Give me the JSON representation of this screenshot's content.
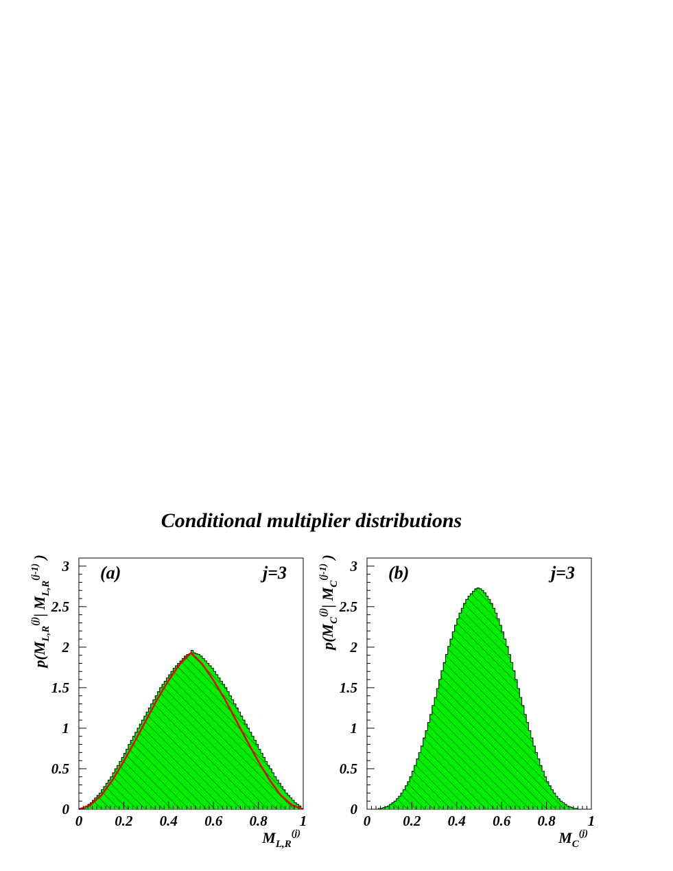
{
  "title": "Conditional multiplier distributions",
  "colors": {
    "fill": "#00ee00",
    "curve": "#ee0000",
    "hatch": "#003300",
    "frame": "#000000"
  },
  "panels": [
    {
      "label": "(a)",
      "j_label": "j=3",
      "xlabel": {
        "base": "M",
        "sub": "L,R",
        "sup": "(j)"
      },
      "ylabel": {
        "p": "p(",
        "m1": "M",
        "sub1": "L,R",
        "sup1": "(j)",
        "bar": "| ",
        "m2": "M",
        "sub2": "L,R",
        "sup2": "(j-1)",
        "close": " )"
      },
      "xticks": [
        "0",
        "0.2",
        "0.4",
        "0.6",
        "0.8",
        "1"
      ],
      "yticks": [
        "0",
        "0.5",
        "1",
        "1.5",
        "2",
        "2.5",
        "3"
      ]
    },
    {
      "label": "(b)",
      "j_label": "j=3",
      "xlabel": {
        "base": "M",
        "sub": "C",
        "sup": "(j)"
      },
      "ylabel": {
        "p": "p(",
        "m1": "M",
        "sub1": "C",
        "sup1": "(j)",
        "bar": "| ",
        "m2": "M",
        "sub2": "C",
        "sup2": "(j-1)",
        "close": " )"
      },
      "xticks": [
        "0",
        "0.2",
        "0.4",
        "0.6",
        "0.8",
        "1"
      ],
      "yticks": [
        "0",
        "0.5",
        "1",
        "1.5",
        "2",
        "2.5",
        "3"
      ]
    }
  ],
  "chart_data": [
    {
      "type": "bar",
      "panel": "(a)",
      "xlim": [
        0,
        1
      ],
      "ylim": [
        0,
        3.1
      ],
      "bins": 100,
      "series": [
        {
          "kind": "histogram",
          "values": [
            0.0,
            0.01,
            0.02,
            0.04,
            0.06,
            0.08,
            0.11,
            0.14,
            0.17,
            0.2,
            0.24,
            0.28,
            0.32,
            0.36,
            0.4,
            0.45,
            0.5,
            0.54,
            0.59,
            0.64,
            0.69,
            0.74,
            0.8,
            0.85,
            0.9,
            0.95,
            1.0,
            1.05,
            1.1,
            1.15,
            1.2,
            1.25,
            1.3,
            1.35,
            1.4,
            1.45,
            1.5,
            1.54,
            1.58,
            1.62,
            1.66,
            1.7,
            1.74,
            1.77,
            1.8,
            1.83,
            1.86,
            1.89,
            1.91,
            1.92,
            1.96,
            1.93,
            1.92,
            1.91,
            1.89,
            1.86,
            1.83,
            1.8,
            1.77,
            1.74,
            1.7,
            1.66,
            1.62,
            1.58,
            1.54,
            1.5,
            1.45,
            1.4,
            1.35,
            1.3,
            1.25,
            1.2,
            1.15,
            1.1,
            1.05,
            1.0,
            0.95,
            0.9,
            0.85,
            0.8,
            0.74,
            0.69,
            0.64,
            0.59,
            0.54,
            0.5,
            0.45,
            0.4,
            0.36,
            0.32,
            0.28,
            0.24,
            0.2,
            0.17,
            0.14,
            0.11,
            0.08,
            0.06,
            0.04,
            0.01
          ]
        },
        {
          "kind": "curve",
          "x": [
            0,
            0.05,
            0.1,
            0.15,
            0.2,
            0.25,
            0.3,
            0.35,
            0.4,
            0.45,
            0.5,
            0.55,
            0.6,
            0.65,
            0.7,
            0.75,
            0.8,
            0.85,
            0.9,
            0.95,
            1
          ],
          "y": [
            0,
            0.05,
            0.17,
            0.36,
            0.59,
            0.84,
            1.1,
            1.36,
            1.59,
            1.79,
            1.93,
            1.79,
            1.59,
            1.36,
            1.1,
            0.84,
            0.59,
            0.36,
            0.17,
            0.05,
            0
          ]
        }
      ]
    },
    {
      "type": "bar",
      "panel": "(b)",
      "xlim": [
        0,
        1
      ],
      "ylim": [
        0,
        3.1
      ],
      "bins": 100,
      "series": [
        {
          "kind": "histogram",
          "values": [
            0,
            0,
            0,
            0,
            0,
            0.01,
            0.01,
            0.02,
            0.03,
            0.04,
            0.06,
            0.08,
            0.1,
            0.13,
            0.16,
            0.2,
            0.24,
            0.29,
            0.34,
            0.4,
            0.47,
            0.54,
            0.62,
            0.7,
            0.78,
            0.88,
            0.97,
            1.07,
            1.17,
            1.28,
            1.38,
            1.49,
            1.6,
            1.71,
            1.81,
            1.91,
            2.01,
            2.1,
            2.19,
            2.27,
            2.35,
            2.42,
            2.48,
            2.54,
            2.59,
            2.63,
            2.66,
            2.69,
            2.72,
            2.73,
            2.72,
            2.7,
            2.67,
            2.63,
            2.59,
            2.54,
            2.48,
            2.42,
            2.35,
            2.27,
            2.19,
            2.1,
            2.01,
            1.91,
            1.81,
            1.71,
            1.6,
            1.49,
            1.38,
            1.28,
            1.17,
            1.07,
            0.97,
            0.88,
            0.78,
            0.7,
            0.62,
            0.54,
            0.47,
            0.4,
            0.34,
            0.29,
            0.24,
            0.2,
            0.16,
            0.13,
            0.1,
            0.08,
            0.06,
            0.04,
            0.03,
            0.02,
            0.01,
            0.01,
            0,
            0,
            0,
            0,
            0,
            0
          ]
        }
      ]
    }
  ]
}
